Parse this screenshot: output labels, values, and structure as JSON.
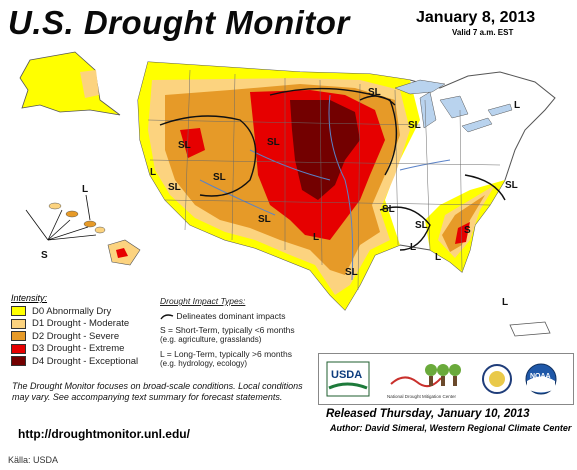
{
  "header": {
    "title": "U.S. Drought Monitor",
    "date": "January 8, 2013",
    "valid": "Valid 7 a.m. EST"
  },
  "legend": {
    "title": "Intensity:",
    "items": [
      {
        "label": "D0 Abnormally Dry",
        "color": "#ffff00"
      },
      {
        "label": "D1 Drought - Moderate",
        "color": "#fcd37f"
      },
      {
        "label": "D2 Drought - Severe",
        "color": "#e69a28"
      },
      {
        "label": "D3 Drought - Extreme",
        "color": "#e60000"
      },
      {
        "label": "D4 Drought - Exceptional",
        "color": "#730000"
      }
    ]
  },
  "impact_types": {
    "title": "Drought Impact Types:",
    "delineates": "Delineates dominant impacts",
    "short_term": "S = Short-Term, typically <6 months",
    "short_term_eg": "(e.g. agriculture, grasslands)",
    "long_term": "L = Long-Term, typically >6 months",
    "long_term_eg": "(e.g. hydrology, ecology)"
  },
  "map_labels": {
    "sl": "SL",
    "s": "S",
    "l": "L"
  },
  "note": "The Drought Monitor focuses on broad-scale conditions. Local conditions may vary. See accompanying text summary for forecast statements.",
  "url": "http://droughtmonitor.unl.edu/",
  "released": "Released Thursday, January 10, 2013",
  "author": "Author: David Simeral, Western Regional Climate Center",
  "logos": {
    "usda": "USDA",
    "ndmc": "National Drought Mitigation Center",
    "noaa": "NOAA"
  },
  "source": "Källa: USDA",
  "colors": {
    "none": "#ffffff",
    "water": "#b9d3ee",
    "boundary": "#6a6a6a",
    "river": "#5a82c8"
  }
}
